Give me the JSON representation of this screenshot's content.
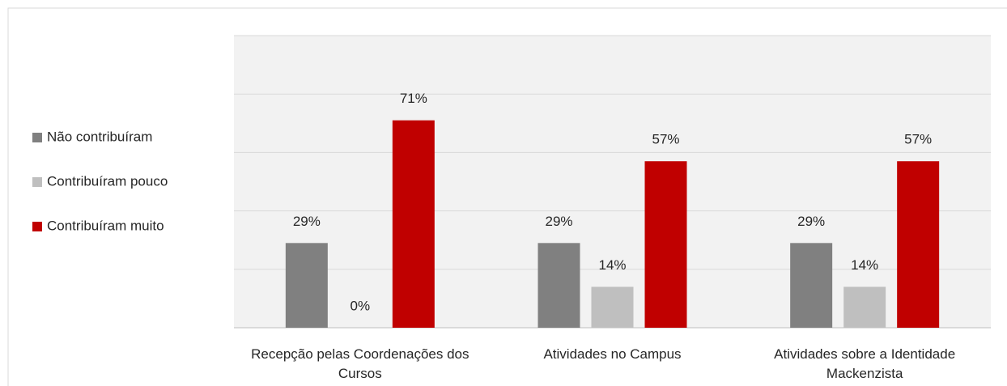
{
  "chart_data": {
    "type": "bar",
    "categories": [
      "Recepção pelas Coordenações dos Cursos",
      "Atividades no Campus",
      "Atividades sobre a Identidade Mackenzista"
    ],
    "series": [
      {
        "name": "Não contribuíram",
        "color": "#808080",
        "values": [
          29,
          29,
          29
        ],
        "value_labels": [
          "29%",
          "29%",
          "29%"
        ]
      },
      {
        "name": "Contribuíram pouco",
        "color": "#bfbfbf",
        "values": [
          0,
          14,
          14
        ],
        "value_labels": [
          "0%",
          "14%",
          "14%"
        ]
      },
      {
        "name": "Contribuíram muito",
        "color": "#c00000",
        "values": [
          71,
          57,
          57
        ],
        "value_labels": [
          "71%",
          "57%",
          "57%"
        ]
      }
    ],
    "ylim": [
      0,
      100
    ],
    "yticks": [
      0,
      20,
      40,
      60,
      80,
      100
    ],
    "grid": true,
    "legend": "left"
  }
}
